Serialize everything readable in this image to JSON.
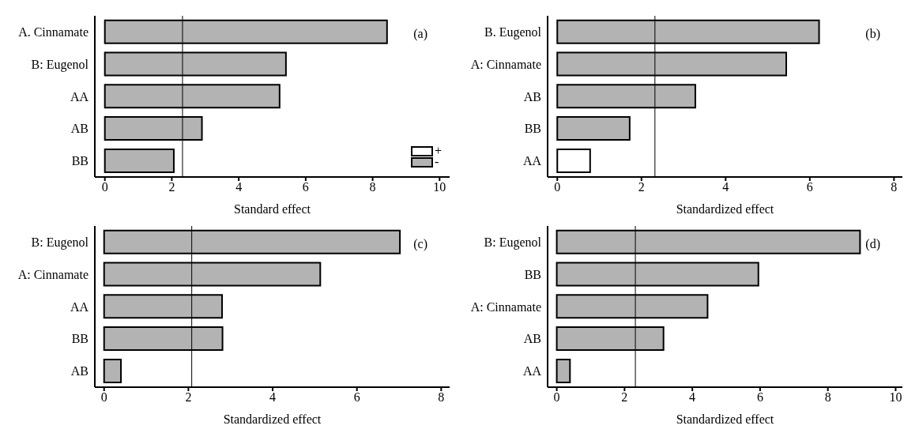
{
  "chart_data": [
    {
      "type": "bar",
      "orientation": "horizontal",
      "stacked": true,
      "xlabel": "Standard effect",
      "categories": [
        "A. Cinnamate",
        "B: Eugenol",
        "AA",
        "AB",
        "BB"
      ],
      "series": [
        {
          "name": "+",
          "color": "#ffffff",
          "values": [
            null,
            null,
            null,
            null,
            null
          ]
        },
        {
          "name": "-",
          "color": "#b3b3b3",
          "values": [
            8.43,
            5.41,
            5.22,
            2.9,
            2.06
          ]
        }
      ],
      "xlim": [
        -0.3,
        10.3
      ],
      "xticks": [
        0,
        2,
        4,
        6,
        8,
        10
      ],
      "ref_lines": [
        {
          "axis": "x",
          "value": 2.32,
          "color": "#000000"
        }
      ],
      "legend": "bottom right",
      "annotations": [
        "(a)"
      ]
    },
    {
      "type": "bar",
      "orientation": "horizontal",
      "xlabel": "Standardized effect",
      "categories": [
        "B. Eugenol",
        "A: Cinnamate",
        "AB",
        "BB",
        "AA"
      ],
      "values": [
        6.22,
        5.44,
        3.28,
        1.72,
        0.78
      ],
      "colors": [
        "#b3b3b3",
        "#b3b3b3",
        "#b3b3b3",
        "#b3b3b3",
        "#ffffff"
      ],
      "xlim": [
        -0.23,
        8.2
      ],
      "xticks": [
        0,
        2,
        4,
        6,
        8
      ],
      "ref_lines": [
        {
          "axis": "x",
          "value": 2.32,
          "color": "#000000"
        }
      ],
      "annotations": [
        "(b)"
      ]
    },
    {
      "type": "bar",
      "orientation": "horizontal",
      "xlabel": "Standardized effect",
      "categories": [
        "B: Eugenol",
        "A: Cinnamate",
        "AA",
        "BB",
        "AB"
      ],
      "values": [
        7.02,
        5.13,
        2.8,
        2.81,
        0.4
      ],
      "color": "#b3b3b3",
      "xlim": [
        -0.22,
        8.2
      ],
      "xticks": [
        0,
        2,
        4,
        6,
        8
      ],
      "ref_lines": [
        {
          "axis": "x",
          "value": 2.08,
          "color": "#000000"
        }
      ],
      "annotations": [
        "(c)"
      ]
    },
    {
      "type": "bar",
      "orientation": "horizontal",
      "xlabel": "Standardized effect",
      "categories": [
        "B: Eugenol",
        "BB",
        "A: Cinnamate",
        "AB",
        "AA"
      ],
      "values": [
        8.95,
        5.95,
        4.45,
        3.15,
        0.39
      ],
      "color": "#b3b3b3",
      "xlim": [
        -0.27,
        10.2
      ],
      "xticks": [
        0,
        2,
        4,
        6,
        8,
        10
      ],
      "ref_lines": [
        {
          "axis": "x",
          "value": 2.32,
          "color": "#000000"
        }
      ],
      "annotations": [
        "(d)"
      ]
    }
  ]
}
